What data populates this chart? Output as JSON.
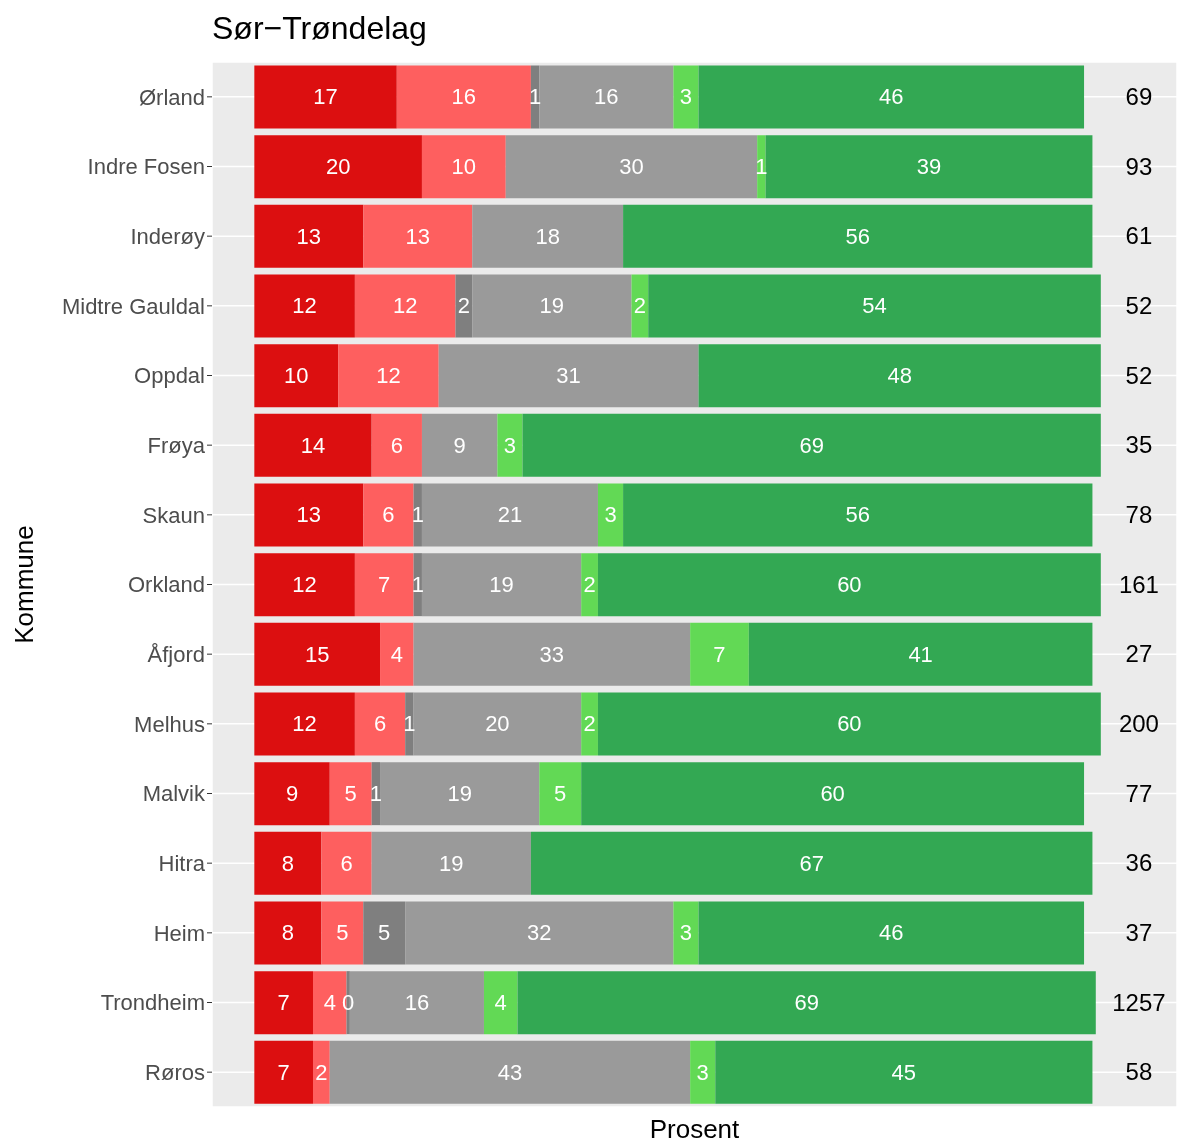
{
  "chart_data": {
    "type": "bar",
    "orientation": "horizontal",
    "stacked": true,
    "title": "Sør−Trøndelag",
    "xlabel": "Prosent",
    "ylabel": "Kommune",
    "categories": [
      "Ørland",
      "Indre Fosen",
      "Inderøy",
      "Midtre Gauldal",
      "Oppdal",
      "Frøya",
      "Skaun",
      "Orkland",
      "Åfjord",
      "Melhus",
      "Malvik",
      "Hitra",
      "Heim",
      "Trondheim",
      "Røros"
    ],
    "series": [
      {
        "color": "#dc0f10",
        "values": [
          17,
          20,
          13,
          12,
          10,
          14,
          13,
          12,
          15,
          12,
          9,
          8,
          8,
          7,
          7
        ]
      },
      {
        "color": "#fe5f5f",
        "values": [
          16,
          10,
          13,
          12,
          12,
          6,
          6,
          7,
          4,
          6,
          5,
          6,
          5,
          4,
          2
        ]
      },
      {
        "color": "#7f7f7f",
        "values": [
          1,
          null,
          null,
          2,
          null,
          null,
          1,
          1,
          null,
          1,
          1,
          null,
          5,
          0.4,
          null
        ],
        "value_labels": [
          "1",
          null,
          null,
          "2",
          null,
          null,
          "1",
          "1",
          null,
          "1",
          "1",
          null,
          "5",
          "0",
          null
        ]
      },
      {
        "color": "#9a9a9a",
        "values": [
          16,
          30,
          18,
          19,
          31,
          9,
          21,
          19,
          33,
          20,
          19,
          19,
          32,
          16,
          43
        ]
      },
      {
        "color": "#62d955",
        "values": [
          3,
          1,
          null,
          2,
          null,
          3,
          3,
          2,
          7,
          2,
          5,
          null,
          3,
          4,
          3
        ]
      },
      {
        "color": "#33a853",
        "values": [
          46,
          39,
          56,
          54,
          48,
          69,
          56,
          60,
          41,
          60,
          60,
          67,
          46,
          69,
          45
        ]
      }
    ],
    "annotations": [
      "69",
      "93",
      "61",
      "52",
      "52",
      "35",
      "78",
      "161",
      "27",
      "200",
      "77",
      "36",
      "37",
      "1257",
      "58"
    ],
    "data_labels": true,
    "grid": true,
    "tick_labels": "y"
  }
}
